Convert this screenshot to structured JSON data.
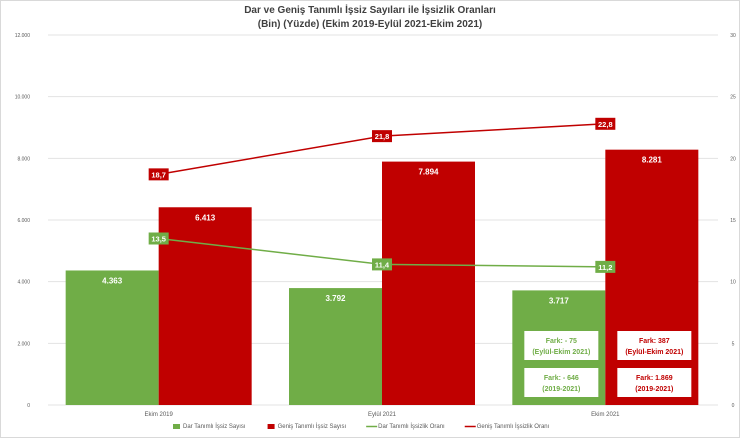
{
  "chart_data": {
    "type": "bar+line",
    "title_line1": "Dar ve Geniş Tanımlı İşsiz Sayıları ile İşsizlik Oranları",
    "title_line2": "(Bin) (Yüzde) (Ekim 2019-Eylül 2021-Ekim 2021)",
    "categories": [
      "Ekim 2019",
      "Eylül 2021",
      "Ekim 2021"
    ],
    "left_axis": {
      "range": [
        0,
        12000
      ],
      "ticks": [
        "0",
        "2.000",
        "4.000",
        "6.000",
        "8.000",
        "10.000",
        "12.000"
      ]
    },
    "right_axis": {
      "range": [
        0,
        30
      ],
      "ticks": [
        "0",
        "5",
        "10",
        "15",
        "20",
        "25",
        "30"
      ]
    },
    "grid": true,
    "legend_position": "bottom",
    "series": [
      {
        "name": "Dar Tanımlı İşsiz Sayısı",
        "kind": "bar",
        "axis": "left",
        "color": "#70ad47",
        "values": [
          4363,
          3792,
          3717
        ],
        "labels": [
          "4.363",
          "3.792",
          "3.717"
        ]
      },
      {
        "name": "Geniş Tanımlı İşsiz Sayısı",
        "kind": "bar",
        "axis": "left",
        "color": "#c00000",
        "values": [
          6413,
          7894,
          8281
        ],
        "labels": [
          "6.413",
          "7.894",
          "8.281"
        ]
      },
      {
        "name": "Dar Tanımlı İşsizlik Oranı",
        "kind": "line",
        "axis": "right",
        "color": "#70ad47",
        "values": [
          13.5,
          11.4,
          11.2
        ],
        "labels": [
          "13,5",
          "11,4",
          "11,2"
        ]
      },
      {
        "name": "Geniş Tanımlı İşsizlik Oranı",
        "kind": "line",
        "axis": "right",
        "color": "#c00000",
        "values": [
          18.7,
          21.8,
          22.8
        ],
        "labels": [
          "18,7",
          "21,8",
          "22,8"
        ]
      }
    ],
    "annotations": [
      {
        "series": 0,
        "line1": "Fark: - 75",
        "line2": "(Eylül-Ekim 2021)"
      },
      {
        "series": 0,
        "line1": "Fark: - 646",
        "line2": "(2019-2021)"
      },
      {
        "series": 1,
        "line1": "Fark: 387",
        "line2": "(Eylül-Ekim 2021)"
      },
      {
        "series": 1,
        "line1": "Fark: 1.869",
        "line2": "(2019-2021)"
      }
    ]
  }
}
